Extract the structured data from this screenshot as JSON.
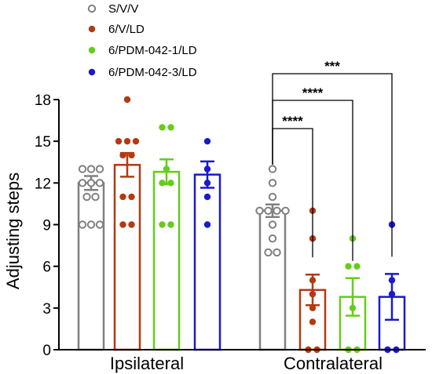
{
  "chart_data": {
    "type": "bar",
    "ylabel": "Adjusting steps",
    "ylim": [
      0,
      18
    ],
    "yticks": [
      0,
      3,
      6,
      9,
      12,
      15,
      18
    ],
    "groups": [
      "Ipsilateral",
      "Contralateral"
    ],
    "series": [
      {
        "name": "S/V/V",
        "color": "#808080",
        "filled": false,
        "means": [
          12.0,
          10.0
        ],
        "sem": [
          0.5,
          0.45
        ],
        "points": [
          [
            9,
            9,
            9,
            11,
            11,
            12,
            12,
            12,
            13,
            13,
            13
          ],
          [
            7,
            7,
            8,
            9,
            10,
            10,
            10,
            10,
            11,
            12,
            13
          ]
        ]
      },
      {
        "name": "6/V/LD",
        "color": "#b23a12",
        "filled": true,
        "means": [
          13.3,
          4.3
        ],
        "sem": [
          0.85,
          1.1
        ],
        "points": [
          [
            9,
            9,
            11,
            11,
            14,
            14,
            15,
            15,
            15,
            18
          ],
          [
            0,
            0,
            2,
            3,
            4,
            5,
            8,
            10
          ]
        ]
      },
      {
        "name": "6/PDM-042-1/LD",
        "color": "#66cc1a",
        "filled": true,
        "means": [
          12.8,
          3.8
        ],
        "sem": [
          0.9,
          1.35
        ],
        "points": [
          [
            9,
            9,
            12,
            12,
            13,
            16,
            16
          ],
          [
            0,
            0,
            3,
            6,
            6,
            8
          ]
        ]
      },
      {
        "name": "6/PDM-042-3/LD",
        "color": "#1a1acc",
        "filled": true,
        "means": [
          12.6,
          3.8
        ],
        "sem": [
          0.95,
          1.65
        ],
        "points": [
          [
            9,
            11,
            12,
            13,
            15
          ],
          [
            0,
            0,
            4,
            5,
            9
          ]
        ]
      }
    ],
    "annotations": [
      {
        "label": "****",
        "from_series": 0,
        "to_series": 1,
        "group": 1
      },
      {
        "label": "****",
        "from_series": 0,
        "to_series": 2,
        "group": 1
      },
      {
        "label": "***",
        "from_series": 0,
        "to_series": 3,
        "group": 1
      }
    ]
  }
}
